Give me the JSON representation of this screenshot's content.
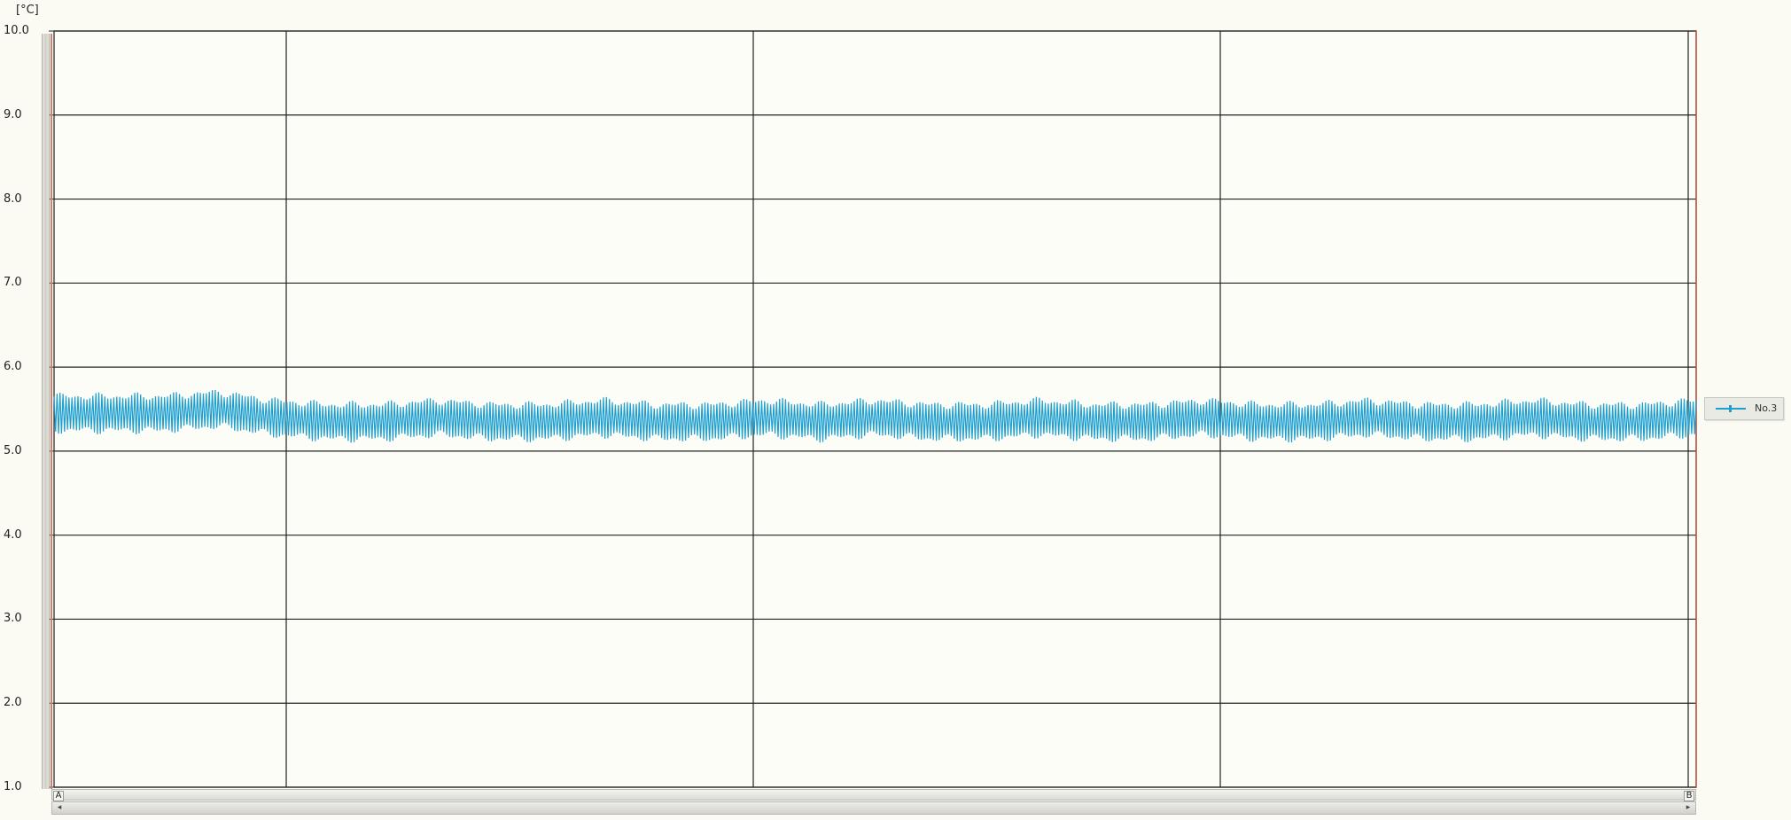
{
  "chart_data": {
    "type": "line",
    "title": "",
    "xlabel": "",
    "ylabel": "[°C]",
    "ylim": [
      1.0,
      10.0
    ],
    "yticks": [
      "10.0",
      "9.0",
      "8.0",
      "7.0",
      "6.0",
      "5.0",
      "4.0",
      "3.0",
      "2.0",
      "1.0"
    ],
    "grid": true,
    "legend_position": "right",
    "series": [
      {
        "name": "No.3",
        "color": "#1e9fd0",
        "x": [
          0,
          40,
          80,
          120,
          160,
          200,
          240,
          280,
          320,
          360,
          400,
          440,
          480,
          520,
          560,
          600,
          640,
          680,
          720,
          760,
          800,
          840,
          880,
          920,
          960,
          1000,
          1040,
          1080,
          1120,
          1160,
          1200
        ],
        "values": [
          5.45,
          5.45,
          5.45,
          5.5,
          5.4,
          5.35,
          5.35,
          5.4,
          5.35,
          5.35,
          5.4,
          5.35,
          5.35,
          5.4,
          5.35,
          5.4,
          5.35,
          5.35,
          5.4,
          5.35,
          5.35,
          5.4,
          5.35,
          5.35,
          5.4,
          5.35,
          5.35,
          5.4,
          5.35,
          5.35,
          5.4
        ],
        "oscillation_amplitude": 0.25
      }
    ]
  },
  "cursors": {
    "a_label": "A",
    "b_label": "B"
  },
  "scrollbar": {
    "left_arrow": "◂",
    "right_arrow": "▸"
  }
}
